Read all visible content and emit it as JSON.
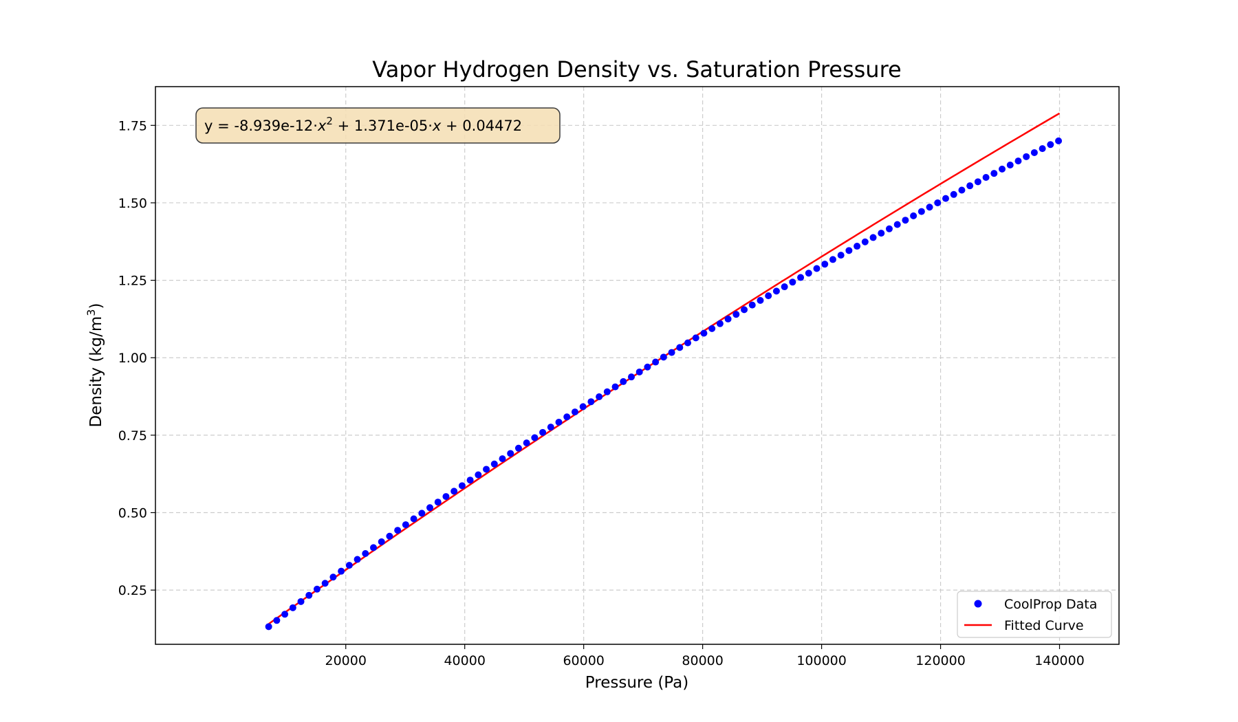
{
  "chart_data": {
    "type": "scatter",
    "title": "Vapor Hydrogen Density vs. Saturation Pressure",
    "xlabel": "Pressure (Pa)",
    "ylabel_main": "Density (kg/m",
    "ylabel_sup": "3",
    "ylabel_tail": ")",
    "xlim": [
      -12000,
      150000
    ],
    "ylim": [
      0.075,
      1.875
    ],
    "x_ticks": [
      20000,
      40000,
      60000,
      80000,
      100000,
      120000,
      140000
    ],
    "x_tick_labels": [
      "20000",
      "40000",
      "60000",
      "80000",
      "100000",
      "120000",
      "140000"
    ],
    "y_ticks": [
      0.25,
      0.5,
      0.75,
      1.0,
      1.25,
      1.5,
      1.75
    ],
    "y_tick_labels": [
      "0.25",
      "0.50",
      "0.75",
      "1.00",
      "1.25",
      "1.50",
      "1.75"
    ],
    "grid": true,
    "legend_position": "lower-right",
    "equation": {
      "part1": "y = -8.939e-12·",
      "var1": "x",
      "sup": "2",
      "part2": " + 1.371e-05·",
      "var2": "x",
      "part3": " + 0.04472"
    },
    "fit_coefficients": {
      "a": -8.939e-12,
      "b": 1.371e-05,
      "c": 0.04472
    },
    "series": [
      {
        "name": "CoolProp Data",
        "kind": "scatter",
        "color": "#0000ff",
        "x": [
          7040,
          8395,
          9750,
          11105,
          12460,
          13815,
          15170,
          16525,
          17880,
          19235,
          20590,
          21945,
          23300,
          24655,
          26010,
          27365,
          28720,
          30075,
          31430,
          32785,
          34140,
          35495,
          36850,
          38205,
          39560,
          40915,
          42270,
          43625,
          44980,
          46335,
          47690,
          49045,
          50400,
          51755,
          53110,
          54465,
          55820,
          57175,
          58530,
          59885,
          61240,
          62595,
          63950,
          65305,
          66660,
          68015,
          69370,
          70725,
          72080,
          73435,
          74790,
          76145,
          77500,
          78855,
          80210,
          81565,
          82920,
          84275,
          85630,
          86985,
          88340,
          89695,
          91050,
          92405,
          93760,
          95115,
          96470,
          97825,
          99180,
          100535,
          101890,
          103245,
          104600,
          105955,
          107310,
          108665,
          110020,
          111375,
          112730,
          114085,
          115440,
          116795,
          118150,
          119505,
          120860,
          122215,
          123570,
          124925,
          126280,
          127635,
          128990,
          130345,
          131700,
          133055,
          134410,
          135765,
          137120,
          138475,
          139830
        ],
        "y": [
          0.132,
          0.152,
          0.172,
          0.193,
          0.213,
          0.233,
          0.253,
          0.272,
          0.292,
          0.311,
          0.33,
          0.349,
          0.368,
          0.387,
          0.406,
          0.424,
          0.443,
          0.461,
          0.48,
          0.498,
          0.516,
          0.534,
          0.552,
          0.569,
          0.587,
          0.605,
          0.622,
          0.64,
          0.657,
          0.674,
          0.691,
          0.708,
          0.725,
          0.742,
          0.759,
          0.776,
          0.792,
          0.809,
          0.825,
          0.842,
          0.858,
          0.874,
          0.89,
          0.906,
          0.923,
          0.938,
          0.954,
          0.97,
          0.986,
          1.002,
          1.017,
          1.033,
          1.048,
          1.064,
          1.079,
          1.094,
          1.11,
          1.125,
          1.14,
          1.155,
          1.17,
          1.185,
          1.2,
          1.215,
          1.229,
          1.244,
          1.259,
          1.273,
          1.288,
          1.302,
          1.317,
          1.331,
          1.346,
          1.36,
          1.374,
          1.388,
          1.402,
          1.416,
          1.43,
          1.444,
          1.458,
          1.472,
          1.486,
          1.5,
          1.514,
          1.527,
          1.541,
          1.555,
          1.568,
          1.582,
          1.595,
          1.609,
          1.622,
          1.635,
          1.649,
          1.662,
          1.675,
          1.688,
          1.7
        ]
      },
      {
        "name": "Fitted Curve",
        "kind": "line",
        "color": "#ff0000",
        "x_range": [
          7040,
          140000
        ]
      }
    ]
  },
  "colors": {
    "points": "#0000ff",
    "fit_line": "#ff0000",
    "equation_box_fill": "#f5deb3",
    "grid": "#cccccc"
  }
}
